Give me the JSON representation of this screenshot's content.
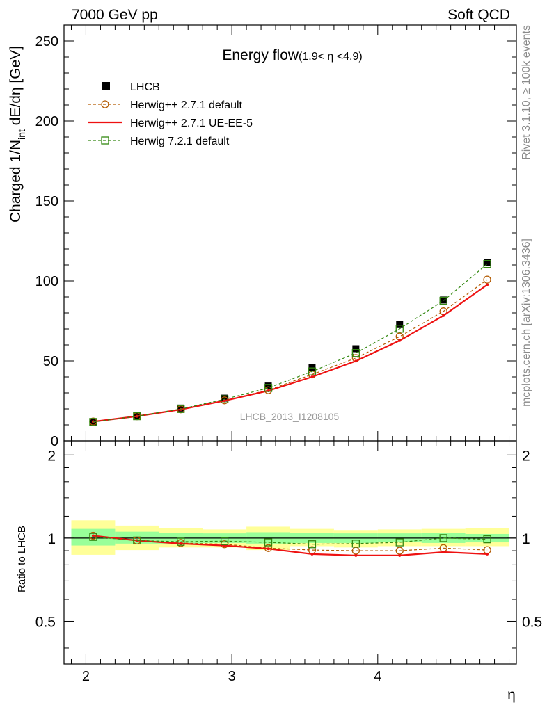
{
  "header": {
    "left": "7000 GeV pp",
    "right": "Soft QCD"
  },
  "side": {
    "rivet": "Rivet 3.1.10, ≥ 100k events",
    "mcplots": "mcplots.cern.ch [arXiv:1306.3436]"
  },
  "chart_data": {
    "type": "line",
    "title": "Energy flow",
    "title_range": "(1.9< η <4.9)",
    "watermark": "LHCB_2013_I1208105",
    "xlabel": "η",
    "ylabel_main": "Charged 1/N",
    "ylabel_sub": "int",
    "ylabel_tail": " dE/dη [GeV]",
    "ylabel_ratio": "Ratio to LHCB",
    "xlim": [
      1.85,
      4.95
    ],
    "ylim": [
      0,
      260
    ],
    "ratio_ylim": [
      0.35,
      2.25
    ],
    "x_ticks": [
      "2",
      "3",
      "4"
    ],
    "y_ticks": [
      "0",
      "50",
      "100",
      "150",
      "200",
      "250"
    ],
    "ratio_ticks": [
      "0.5",
      "1",
      "2"
    ],
    "x": [
      2.05,
      2.35,
      2.65,
      2.95,
      3.25,
      3.55,
      3.85,
      4.15,
      4.45,
      4.75
    ],
    "x_edges": [
      1.9,
      2.2,
      2.5,
      2.8,
      3.1,
      3.4,
      3.7,
      4.0,
      4.3,
      4.6,
      4.9
    ],
    "legend": [
      {
        "label": "LHCB"
      },
      {
        "label": "Herwig++ 2.7.1 default"
      },
      {
        "label": "Herwig++ 2.7.1 UE-EE-5"
      },
      {
        "label": "Herwig 7.2.1 default"
      }
    ],
    "series": [
      {
        "name": "LHCB",
        "color": "#000000",
        "values": [
          11.7,
          15.7,
          20.5,
          26.7,
          34.3,
          45.8,
          57.6,
          72.7,
          88.1,
          111.5
        ]
      },
      {
        "name": "Herwig++ 2.7.1 default",
        "color": "#b35a00",
        "values": [
          12.1,
          15.4,
          19.7,
          25.3,
          31.7,
          41.5,
          51.8,
          65.2,
          81.0,
          100.8
        ]
      },
      {
        "name": "Herwig++ 2.7.1 UE-EE-5",
        "color": "#ee1111",
        "values": [
          12.0,
          15.4,
          19.6,
          25.1,
          31.3,
          40.0,
          49.9,
          62.7,
          78.3,
          97.6
        ]
      },
      {
        "name": "Herwig 7.2.1 default",
        "color": "#338811",
        "values": [
          11.8,
          15.4,
          19.9,
          26.0,
          33.1,
          43.4,
          54.9,
          70.1,
          87.6,
          110.6
        ]
      }
    ],
    "ratios": [
      [
        1.02,
        0.98,
        0.96,
        0.95,
        0.92,
        0.905,
        0.9,
        0.9,
        0.92,
        0.905
      ],
      [
        1.02,
        0.98,
        0.955,
        0.94,
        0.915,
        0.875,
        0.865,
        0.865,
        0.89,
        0.875
      ],
      [
        1.01,
        0.98,
        0.97,
        0.975,
        0.965,
        0.95,
        0.955,
        0.965,
        1.0,
        0.99
      ]
    ],
    "band_inner": [
      [
        0.94,
        1.08
      ],
      [
        0.955,
        1.055
      ],
      [
        0.955,
        1.045
      ],
      [
        0.96,
        1.04
      ],
      [
        0.955,
        1.05
      ],
      [
        0.96,
        1.045
      ],
      [
        0.96,
        1.04
      ],
      [
        0.965,
        1.04
      ],
      [
        0.96,
        1.045
      ],
      [
        0.965,
        1.035
      ]
    ],
    "band_outer": [
      [
        0.87,
        1.16
      ],
      [
        0.905,
        1.11
      ],
      [
        0.925,
        1.085
      ],
      [
        0.925,
        1.075
      ],
      [
        0.905,
        1.1
      ],
      [
        0.935,
        1.08
      ],
      [
        0.925,
        1.07
      ],
      [
        0.935,
        1.075
      ],
      [
        0.935,
        1.08
      ],
      [
        0.935,
        1.085
      ]
    ]
  }
}
